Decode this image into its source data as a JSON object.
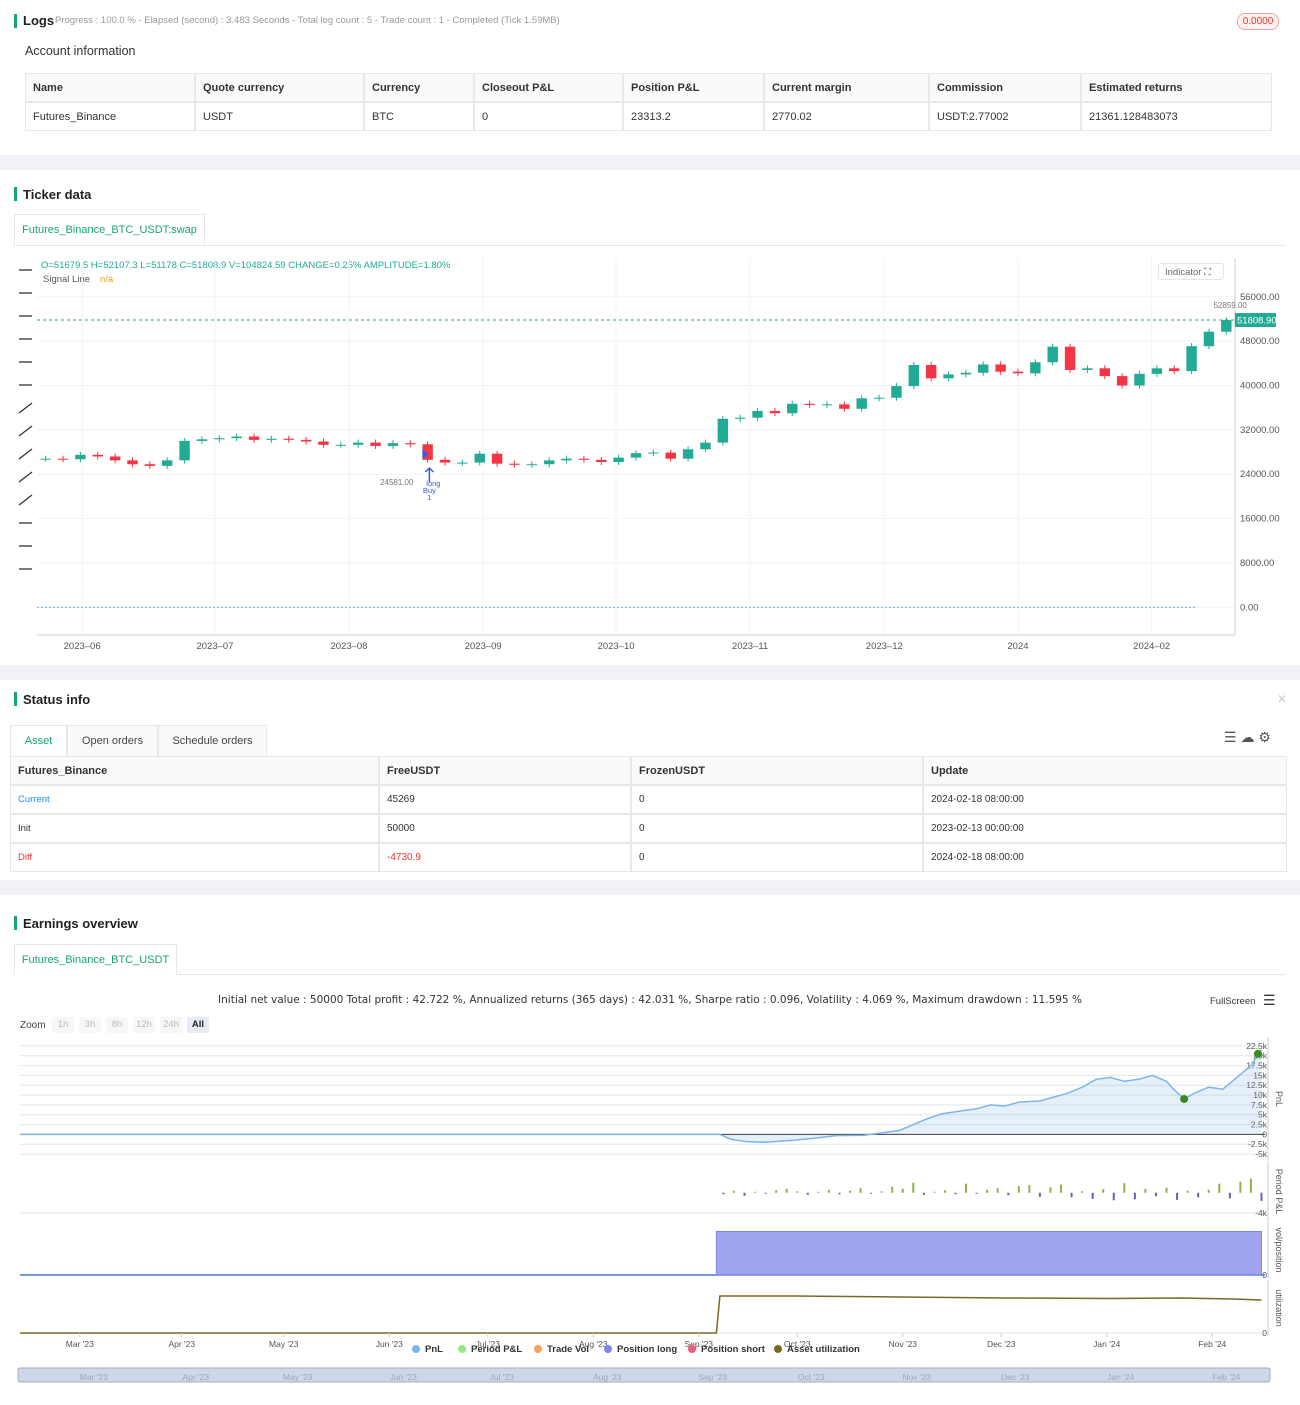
{
  "logs": {
    "title": "Logs",
    "progress": "Progress : 100.0 % - Elapsed (second) : 3.483 Seconds - Total log count : 5 - Trade count : 1 - Completed (Tick 1.59MB)",
    "badge": "0.0000"
  },
  "account": {
    "title": "Account information",
    "columns": [
      "Name",
      "Quote currency",
      "Currency",
      "Closeout P&L",
      "Position P&L",
      "Current margin",
      "Commission",
      "Estimated returns"
    ],
    "rows": [
      [
        "Futures_Binance",
        "USDT",
        "BTC",
        "0",
        "23313.2",
        "2770.02",
        "USDT:2.77002",
        "21361.128483073"
      ]
    ]
  },
  "ticker": {
    "title": "Ticker data",
    "tab": "Futures_Binance_BTC_USDT:swap",
    "ohlc": "O=51679.5 H=52107.3 L=51178 C=51808.9 V=104824.59 CHANGE=0.25% AMPLITUDE=1.80%",
    "signal_label": "Signal Line",
    "signal_value": "n/a",
    "indicator": "Indicator"
  },
  "status": {
    "title": "Status info",
    "tabs": [
      "Asset",
      "Open orders",
      "Schedule orders"
    ],
    "columns": [
      "Futures_Binance",
      "FreeUSDT",
      "FrozenUSDT",
      "Update"
    ],
    "rows": [
      [
        "Current",
        "45269",
        "0",
        "2024-02-18 08:00:00"
      ],
      [
        "Init",
        "50000",
        "0",
        "2023-02-13 00:00:00"
      ],
      [
        "Diff",
        "-4730.9",
        "0",
        "2024-02-18 08:00:00"
      ]
    ]
  },
  "earnings": {
    "title": "Earnings overview",
    "tab": "Futures_Binance_BTC_USDT",
    "summary": "Initial net value : 50000 Total profit : 42.722 %, Annualized returns (365 days) : 42.031 %, Sharpe ratio : 0.096, Volatility : 4.069 %, Maximum drawdown : 11.595 %",
    "fullscreen": "FullScreen",
    "zoom_label": "Zoom",
    "zoom": [
      "1h",
      "3h",
      "8h",
      "12h",
      "24h",
      "All"
    ],
    "legend": [
      {
        "name": "PnL",
        "color": "#7cb5ec"
      },
      {
        "name": "Period P&L",
        "color": "#90ed7d"
      },
      {
        "name": "Trade Vol",
        "color": "#f7a35c"
      },
      {
        "name": "Position long",
        "color": "#8085e9"
      },
      {
        "name": "Position short",
        "color": "#f15c80"
      },
      {
        "name": "Asset utilization",
        "color": "#7a6a20"
      }
    ]
  },
  "chart_data": [
    {
      "type": "candlestick",
      "up_color": "#22ab94",
      "down_color": "#f23645",
      "grid": true,
      "values": [
        26800,
        26700,
        27500,
        27200,
        26500,
        25800,
        25500,
        26500,
        30000,
        30300,
        30500,
        30800,
        30200,
        30400,
        30200,
        29900,
        29300,
        29300,
        29700,
        29100,
        29600,
        29400,
        26600,
        26100,
        26100,
        27700,
        25900,
        25700,
        25800,
        26500,
        26800,
        26600,
        26200,
        27000,
        27800,
        27900,
        26800,
        28500,
        29700,
        34000,
        34200,
        35400,
        35000,
        36700,
        36500,
        36600,
        35800,
        37700,
        37800,
        39900,
        43700,
        41300,
        42000,
        42300,
        43800,
        42500,
        42200,
        44200,
        47000,
        42800,
        43100,
        41700,
        40000,
        42100,
        43100,
        42600,
        47100,
        49700,
        51800
      ],
      "xlim": [
        0,
        69
      ],
      "xticks": [
        {
          "value": 2.6,
          "label": "2023–06"
        },
        {
          "value": 10.25,
          "label": "2023–07"
        },
        {
          "value": 17.97,
          "label": "2023–08"
        },
        {
          "value": 25.7,
          "label": "2023–09"
        },
        {
          "value": 33.35,
          "label": "2023–10"
        },
        {
          "value": 41.07,
          "label": "2023–11"
        },
        {
          "value": 48.8,
          "label": "2023–12"
        },
        {
          "value": 56.5,
          "label": "2024"
        },
        {
          "value": 64.2,
          "label": "2024–02"
        }
      ],
      "ylim": [
        -5000,
        63000
      ],
      "yticks": [
        {
          "value": 0,
          "label": "0.00"
        },
        {
          "value": 8000,
          "label": "8000.00"
        },
        {
          "value": 16000,
          "label": "16000.00"
        },
        {
          "value": 24000,
          "label": "24000.00"
        },
        {
          "value": 32000,
          "label": "32000.00"
        },
        {
          "value": 40000,
          "label": "40000.00"
        },
        {
          "value": 48000,
          "label": "48000.00"
        },
        {
          "value": 56000,
          "label": "56000.00"
        }
      ],
      "last_price": {
        "value": 51808.9,
        "label": "51808.90"
      },
      "high_label": {
        "value": 52859,
        "label": "52859.00",
        "x": 67.3
      },
      "low_label": {
        "value": 24581,
        "label": "24581.00",
        "x": 19.3
      },
      "signal": {
        "x": 22.6,
        "texts": [
          "long",
          "Buy",
          "1"
        ]
      }
    },
    {
      "type": "line",
      "name": "PnL",
      "ylabel": "PnL",
      "color": "#7cb5ec",
      "fill": true,
      "x": [
        0,
        199,
        202,
        206,
        212,
        220,
        226,
        232,
        240,
        246,
        250,
        254,
        258,
        262,
        268,
        272,
        276,
        280,
        284,
        290,
        294,
        298,
        302,
        306,
        310,
        314,
        318,
        322,
        326,
        328,
        331,
        334,
        338,
        342,
        346,
        350,
        353
      ],
      "values": [
        0,
        0,
        -1200,
        -1800,
        -2000,
        -1500,
        -1000,
        -300,
        -200,
        500,
        1000,
        2500,
        4000,
        5200,
        6000,
        6500,
        7500,
        7200,
        8200,
        8500,
        9500,
        10500,
        12000,
        14000,
        14500,
        13500,
        14000,
        15000,
        13500,
        11500,
        9000,
        10500,
        12000,
        11500,
        14500,
        17500,
        21500
      ],
      "markers": {
        "color": "#3c8a1e",
        "x": [
          331,
          352
        ],
        "values": [
          9000,
          20500
        ]
      },
      "xlim": [
        0,
        354
      ],
      "ylim": [
        -6000,
        24000
      ],
      "yticks": [
        {
          "value": 22500,
          "label": "22.5k"
        },
        {
          "value": 20000,
          "label": "20k"
        },
        {
          "value": 17500,
          "label": "17.5k"
        },
        {
          "value": 15000,
          "label": "15k"
        },
        {
          "value": 12500,
          "label": "12.5k"
        },
        {
          "value": 10000,
          "label": "10k"
        },
        {
          "value": 7500,
          "label": "7.5k"
        },
        {
          "value": 5000,
          "label": "5k"
        },
        {
          "value": 2500,
          "label": "2.5k"
        },
        0,
        {
          "value": -2500,
          "label": "-2.5k"
        },
        {
          "value": -5000,
          "label": "-5k"
        }
      ]
    },
    {
      "type": "bar",
      "name": "Period P&L",
      "ylabel": "Period P&L",
      "positive_color": "#8fb04a",
      "negative_color": "#6f5bb5",
      "x": [
        200,
        203,
        206,
        209,
        212,
        215,
        218,
        221,
        224,
        227,
        230,
        233,
        236,
        239,
        242,
        245,
        248,
        251,
        254,
        257,
        260,
        263,
        266,
        269,
        272,
        275,
        278,
        281,
        284,
        287,
        290,
        293,
        296,
        299,
        302,
        305,
        308,
        311,
        314,
        317,
        320,
        323,
        326,
        329,
        332,
        335,
        338,
        341,
        344,
        347,
        350,
        353
      ],
      "values": [
        -300,
        400,
        -600,
        200,
        -200,
        500,
        800,
        300,
        -400,
        200,
        600,
        -300,
        400,
        900,
        -200,
        300,
        1200,
        800,
        2000,
        -400,
        200,
        500,
        -300,
        1800,
        -200,
        600,
        900,
        -500,
        1300,
        1500,
        -800,
        1100,
        1600,
        -900,
        300,
        -1200,
        700,
        -1500,
        1900,
        -1300,
        800,
        -700,
        1000,
        -1400,
        400,
        -900,
        600,
        1800,
        -1100,
        2200,
        2800,
        -1600
      ],
      "xlim": [
        0,
        354
      ],
      "ylim": [
        -5000,
        5500
      ],
      "yticks": [
        {
          "value": -4000,
          "label": "-4k"
        }
      ]
    },
    {
      "type": "area",
      "ylabel": "vol/position",
      "xlim": [
        0,
        354
      ],
      "ylim": [
        0,
        1.15
      ],
      "yticks": [
        0
      ],
      "series": [
        {
          "name": "Position long",
          "color": "#8085e9",
          "x": [
            198,
            353
          ],
          "values": [
            1,
            1
          ]
        }
      ]
    },
    {
      "type": "line",
      "name": "Asset utilization",
      "ylabel": "utilization",
      "color": "#7a6a20",
      "fill": false,
      "x": [
        0,
        198,
        199,
        220,
        250,
        280,
        310,
        330,
        345,
        353
      ],
      "values": [
        0,
        0,
        0.74,
        0.74,
        0.72,
        0.7,
        0.69,
        0.7,
        0.68,
        0.66
      ],
      "xlim": [
        0,
        354
      ],
      "ylim": [
        0,
        1
      ],
      "yticks": [
        0
      ],
      "xticks": [
        {
          "value": 17,
          "label": "Mar '23"
        },
        {
          "value": 46,
          "label": "Apr '23"
        },
        {
          "value": 75,
          "label": "May '23"
        },
        {
          "value": 105,
          "label": "Jun '23"
        },
        {
          "value": 133,
          "label": "Jul '23"
        },
        {
          "value": 163,
          "label": "Aug '23"
        },
        {
          "value": 193,
          "label": "Sep '23"
        },
        {
          "value": 221,
          "label": "Oct '23"
        },
        {
          "value": 251,
          "label": "Nov '23"
        },
        {
          "value": 279,
          "label": "Dec '23"
        },
        {
          "value": 309,
          "label": "Jan '24"
        },
        {
          "value": 339,
          "label": "Feb '24"
        }
      ]
    }
  ]
}
